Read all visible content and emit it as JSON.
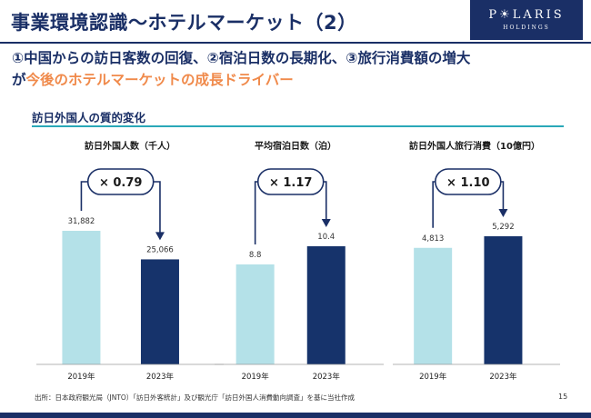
{
  "header": {
    "title": "事業環境認識～ホテルマーケット（2）",
    "logo": {
      "brand": "P☀LARIS",
      "sub": "HOLDINGS"
    }
  },
  "headline": {
    "line1": "①中国からの訪日客数の回復、②宿泊日数の長期化、③旅行消費額の増大",
    "line2_prefix": "が",
    "line2_accent": "今後のホテルマーケットの成長ドライバー"
  },
  "section": {
    "label": "訪日外国人の質的変化"
  },
  "colors": {
    "navy": "#1a2f66",
    "light_bar": "#b4e1e8",
    "dark_bar": "#16336b",
    "accent_orange": "#f08a4b",
    "teal_rule": "#2aa8b8"
  },
  "chart_data": [
    {
      "type": "bar",
      "title": "訪日外国人数（千人）",
      "categories": [
        "2019年",
        "2023年"
      ],
      "values": [
        31882,
        25066
      ],
      "value_labels": [
        "31,882",
        "25,066"
      ],
      "ratio_label": "× 0.79"
    },
    {
      "type": "bar",
      "title": "平均宿泊日数（泊）",
      "categories": [
        "2019年",
        "2023年"
      ],
      "values": [
        8.8,
        10.4
      ],
      "value_labels": [
        "8.8",
        "10.4"
      ],
      "ratio_label": "× 1.17"
    },
    {
      "type": "bar",
      "title": "訪日外国人旅行消費（10億円）",
      "categories": [
        "2019年",
        "2023年"
      ],
      "values": [
        4813,
        5292
      ],
      "value_labels": [
        "4,813",
        "5,292"
      ],
      "ratio_label": "× 1.10"
    }
  ],
  "footer": {
    "source": "出所：日本政府観光局（JNTO）「訪日外客統計」及び観光庁「訪日外国人消費動向調査」を基に当社作成",
    "page_number": "15"
  }
}
